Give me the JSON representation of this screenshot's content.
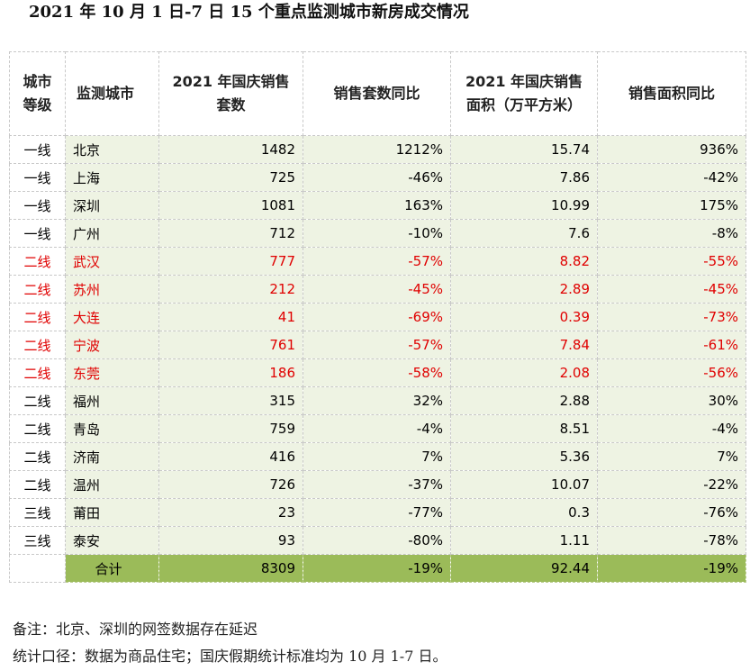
{
  "title": "2021 年 10 月 1 日-7 日 15 个重点监测城市新房成交情况",
  "headers": {
    "level": "城市等级",
    "city": "监测城市",
    "units_2021": "2021 年国庆销售套数",
    "units_yoy": "销售套数同比",
    "area_2021": "2021 年国庆销售面积（万平方米）",
    "area_yoy": "销售面积同比"
  },
  "rows": [
    {
      "level": "一线",
      "city": "北京",
      "units": "1482",
      "units_yoy": "1212%",
      "area": "15.74",
      "area_yoy": "936%",
      "highlight": false
    },
    {
      "level": "一线",
      "city": "上海",
      "units": "725",
      "units_yoy": "-46%",
      "area": "7.86",
      "area_yoy": "-42%",
      "highlight": false
    },
    {
      "level": "一线",
      "city": "深圳",
      "units": "1081",
      "units_yoy": "163%",
      "area": "10.99",
      "area_yoy": "175%",
      "highlight": false
    },
    {
      "level": "一线",
      "city": "广州",
      "units": "712",
      "units_yoy": "-10%",
      "area": "7.6",
      "area_yoy": "-8%",
      "highlight": false
    },
    {
      "level": "二线",
      "city": "武汉",
      "units": "777",
      "units_yoy": "-57%",
      "area": "8.82",
      "area_yoy": "-55%",
      "highlight": true
    },
    {
      "level": "二线",
      "city": "苏州",
      "units": "212",
      "units_yoy": "-45%",
      "area": "2.89",
      "area_yoy": "-45%",
      "highlight": true
    },
    {
      "level": "二线",
      "city": "大连",
      "units": "41",
      "units_yoy": "-69%",
      "area": "0.39",
      "area_yoy": "-73%",
      "highlight": true
    },
    {
      "level": "二线",
      "city": "宁波",
      "units": "761",
      "units_yoy": "-57%",
      "area": "7.84",
      "area_yoy": "-61%",
      "highlight": true
    },
    {
      "level": "二线",
      "city": "东莞",
      "units": "186",
      "units_yoy": "-58%",
      "area": "2.08",
      "area_yoy": "-56%",
      "highlight": true
    },
    {
      "level": "二线",
      "city": "福州",
      "units": "315",
      "units_yoy": "32%",
      "area": "2.88",
      "area_yoy": "30%",
      "highlight": false
    },
    {
      "level": "二线",
      "city": "青岛",
      "units": "759",
      "units_yoy": "-4%",
      "area": "8.51",
      "area_yoy": "-4%",
      "highlight": false
    },
    {
      "level": "二线",
      "city": "济南",
      "units": "416",
      "units_yoy": "7%",
      "area": "5.36",
      "area_yoy": "7%",
      "highlight": false
    },
    {
      "level": "二线",
      "city": "温州",
      "units": "726",
      "units_yoy": "-37%",
      "area": "10.07",
      "area_yoy": "-22%",
      "highlight": false
    },
    {
      "level": "三线",
      "city": "莆田",
      "units": "23",
      "units_yoy": "-77%",
      "area": "0.3",
      "area_yoy": "-76%",
      "highlight": false
    },
    {
      "level": "三线",
      "city": "泰安",
      "units": "93",
      "units_yoy": "-80%",
      "area": "1.11",
      "area_yoy": "-78%",
      "highlight": false
    }
  ],
  "total": {
    "label": "合计",
    "units": "8309",
    "units_yoy": "-19%",
    "area": "92.44",
    "area_yoy": "-19%"
  },
  "notes": {
    "remark": "备注：北京、深圳的网签数据存在延迟",
    "stat": "统计口径：数据为商品住宅；国庆假期统计标准均为 10 月 1-7 日。"
  },
  "colors": {
    "highlight_text": "#e00000",
    "row_fill": "#eef3e3",
    "total_fill": "#9bbb59"
  }
}
